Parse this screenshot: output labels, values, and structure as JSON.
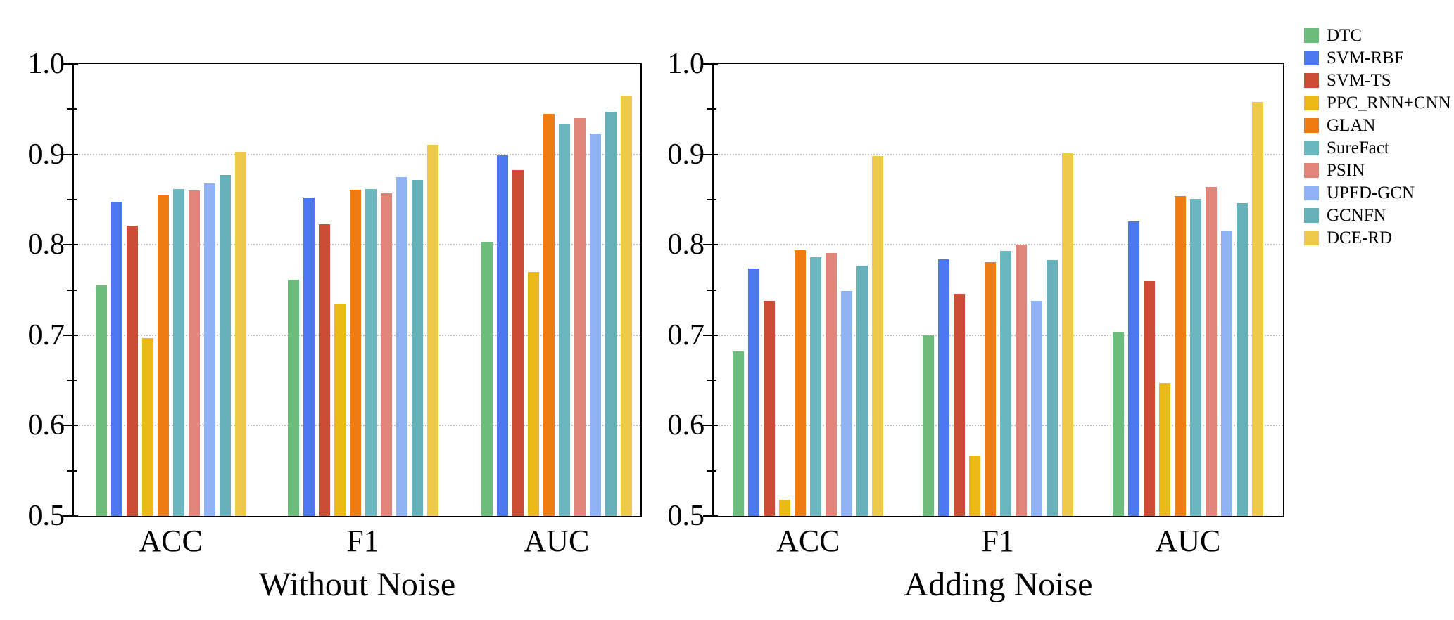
{
  "figure": {
    "background": "#ffffff",
    "text_color": "#000000",
    "grid_color": "#c3c3c3"
  },
  "chart_data": [
    {
      "type": "bar",
      "title": "Without Noise",
      "categories": [
        "ACC",
        "F1",
        "AUC"
      ],
      "ylim": [
        0.5,
        1.0
      ],
      "yticks": [
        0.5,
        0.6,
        0.7,
        0.8,
        0.9,
        1.0
      ],
      "minor_yticks": [
        0.55,
        0.65,
        0.75,
        0.85,
        0.95
      ],
      "gridlines_at": [
        0.6,
        0.7,
        0.8,
        0.9
      ],
      "grid_style": "horizontal dotted",
      "legend_position": "outside top-right, shared by both charts",
      "series": [
        {
          "name": "DTC",
          "color": "#6cbd7b",
          "values": [
            0.755,
            0.761,
            0.803
          ]
        },
        {
          "name": "SVM-RBF",
          "color": "#4d78f0",
          "values": [
            0.848,
            0.852,
            0.899
          ]
        },
        {
          "name": "SVM-TS",
          "color": "#cd4c36",
          "values": [
            0.821,
            0.823,
            0.883
          ]
        },
        {
          "name": "PPC_RNN+CNN",
          "color": "#ecba16",
          "values": [
            0.697,
            0.735,
            0.77
          ]
        },
        {
          "name": "GLAN",
          "color": "#ee7c12",
          "values": [
            0.855,
            0.861,
            0.945
          ]
        },
        {
          "name": "SureFact",
          "color": "#6ab7bf",
          "values": [
            0.862,
            0.862,
            0.934
          ]
        },
        {
          "name": "PSIN",
          "color": "#e08579",
          "values": [
            0.86,
            0.857,
            0.94
          ]
        },
        {
          "name": "UPFD-GCN",
          "color": "#90b3f6",
          "values": [
            0.868,
            0.875,
            0.923
          ]
        },
        {
          "name": "GCNFN",
          "color": "#66b0ba",
          "values": [
            0.877,
            0.872,
            0.947
          ]
        },
        {
          "name": "DCE-RD",
          "color": "#edca49",
          "values": [
            0.903,
            0.911,
            0.965
          ]
        }
      ]
    },
    {
      "type": "bar",
      "title": "Adding Noise",
      "categories": [
        "ACC",
        "F1",
        "AUC"
      ],
      "ylim": [
        0.5,
        1.0
      ],
      "yticks": [
        0.5,
        0.6,
        0.7,
        0.8,
        0.9,
        1.0
      ],
      "minor_yticks": [
        0.55,
        0.65,
        0.75,
        0.85,
        0.95
      ],
      "gridlines_at": [
        0.6,
        0.7,
        0.8,
        0.9
      ],
      "grid_style": "horizontal dotted",
      "legend_position": "outside top-right, shared by both charts",
      "series": [
        {
          "name": "DTC",
          "color": "#6cbd7b",
          "values": [
            0.682,
            0.7,
            0.704
          ]
        },
        {
          "name": "SVM-RBF",
          "color": "#4d78f0",
          "values": [
            0.774,
            0.784,
            0.826
          ]
        },
        {
          "name": "SVM-TS",
          "color": "#cd4c36",
          "values": [
            0.738,
            0.746,
            0.76
          ]
        },
        {
          "name": "PPC_RNN+CNN",
          "color": "#ecba16",
          "values": [
            0.518,
            0.567,
            0.647
          ]
        },
        {
          "name": "GLAN",
          "color": "#ee7c12",
          "values": [
            0.794,
            0.781,
            0.854
          ]
        },
        {
          "name": "SureFact",
          "color": "#6ab7bf",
          "values": [
            0.786,
            0.793,
            0.851
          ]
        },
        {
          "name": "PSIN",
          "color": "#e08579",
          "values": [
            0.791,
            0.8,
            0.864
          ]
        },
        {
          "name": "UPFD-GCN",
          "color": "#90b3f6",
          "values": [
            0.749,
            0.738,
            0.816
          ]
        },
        {
          "name": "GCNFN",
          "color": "#66b0ba",
          "values": [
            0.777,
            0.783,
            0.846
          ]
        },
        {
          "name": "DCE-RD",
          "color": "#edca49",
          "values": [
            0.898,
            0.901,
            0.958
          ]
        }
      ]
    }
  ]
}
